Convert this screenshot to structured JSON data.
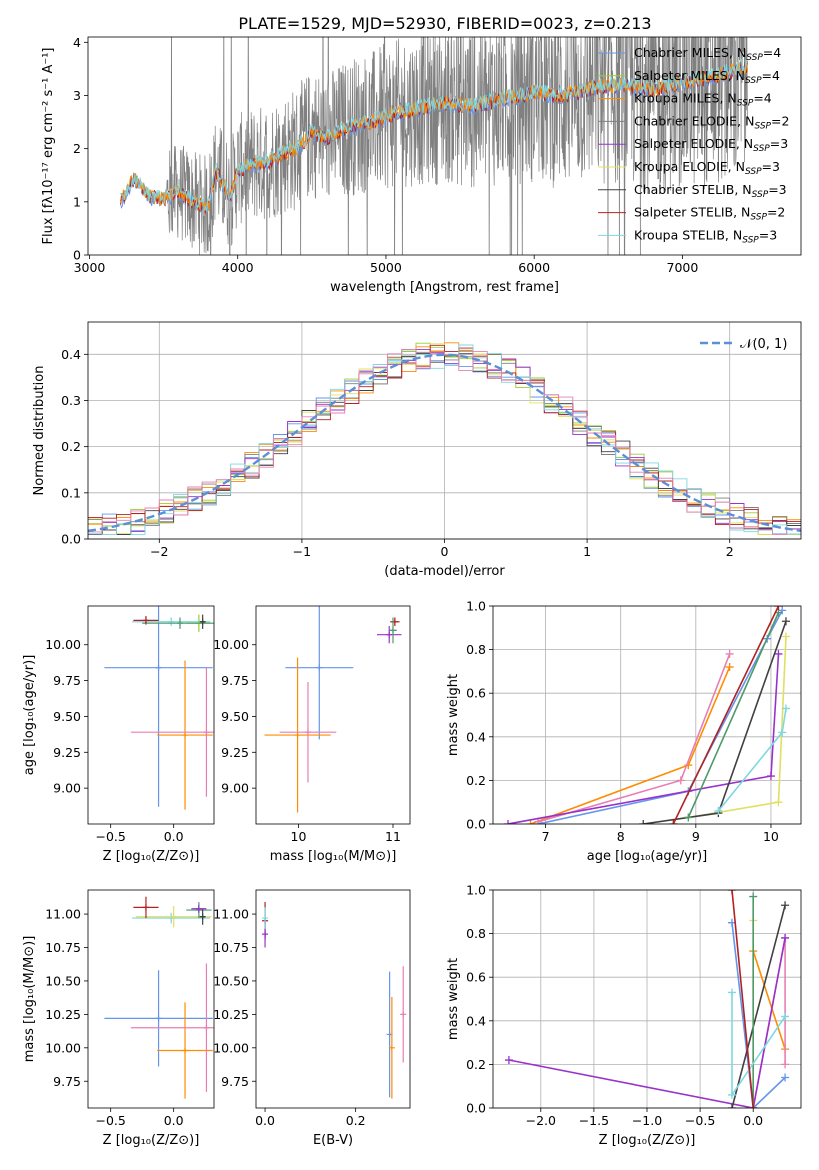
{
  "figure_title": "PLATE=1529, MJD=52930, FIBERID=0023, z=0.213",
  "colors": {
    "Chabrier MILES": "#6495ed",
    "Salpeter MILES": "#9acd32",
    "Kroupa MILES": "#ff8c00",
    "Chabrier ELODIE": "#808080",
    "Salpeter ELODIE": "#9932cc",
    "Kroupa ELODIE": "#e0e060",
    "Chabrier STELIB": "#404040",
    "Salpeter STELIB": "#b22222",
    "Kroupa STELIB": "#7fd7e0",
    "pink": "#e77fb4",
    "green": "#4e9a6a",
    "gaussian": "#5b8fd6"
  },
  "chart_data": [
    {
      "id": "spectrum",
      "type": "line",
      "title": "",
      "xlabel": "wavelength [Angstrom, rest frame]",
      "ylabel": "Flux [fλ10⁻¹⁷ erg cm⁻² s⁻¹ A⁻¹]",
      "xlim": [
        2990,
        7800
      ],
      "ylim": [
        0,
        4.1
      ],
      "xticks": [
        3000,
        4000,
        5000,
        6000,
        7000
      ],
      "yticks": [
        0,
        1,
        2,
        3,
        4
      ],
      "grid": false,
      "legend_position": "top-right",
      "legend": [
        {
          "label": "Chabrier MILES, N",
          "sub": "SSP",
          "suffix": "=4",
          "color_key": "Chabrier MILES"
        },
        {
          "label": "Salpeter MILES, N",
          "sub": "SSP",
          "suffix": "=4",
          "color_key": "Salpeter MILES"
        },
        {
          "label": "Kroupa MILES, N",
          "sub": "SSP",
          "suffix": "=4",
          "color_key": "Kroupa MILES"
        },
        {
          "label": "Chabrier ELODIE, N",
          "sub": "SSP",
          "suffix": "=2",
          "color_key": "Chabrier ELODIE"
        },
        {
          "label": "Salpeter ELODIE, N",
          "sub": "SSP",
          "suffix": "=3",
          "color_key": "Salpeter ELODIE"
        },
        {
          "label": "Kroupa ELODIE, N",
          "sub": "SSP",
          "suffix": "=3",
          "color_key": "Kroupa ELODIE"
        },
        {
          "label": "Chabrier STELIB, N",
          "sub": "SSP",
          "suffix": "=3",
          "color_key": "Chabrier STELIB"
        },
        {
          "label": "Salpeter STELIB, N",
          "sub": "SSP",
          "suffix": "=2",
          "color_key": "Salpeter STELIB"
        },
        {
          "label": "Kroupa STELIB, N",
          "sub": "SSP",
          "suffix": "=3",
          "color_key": "Kroupa STELIB"
        }
      ],
      "continuum_x": [
        3210,
        3300,
        3400,
        3500,
        3600,
        3700,
        3800,
        3850,
        3950,
        4000,
        4100,
        4200,
        4300,
        4400,
        4500,
        4600,
        4700,
        4800,
        4900,
        5000,
        5200,
        5400,
        5600,
        5800,
        6000,
        6200,
        6400,
        6600,
        6800,
        7000,
        7200,
        7450
      ],
      "continuum_y": [
        1.0,
        1.45,
        1.1,
        1.05,
        1.2,
        1.0,
        0.9,
        1.6,
        1.1,
        1.6,
        1.7,
        1.75,
        1.9,
        2.0,
        2.3,
        2.2,
        2.35,
        2.45,
        2.5,
        2.6,
        2.75,
        2.85,
        2.8,
        2.95,
        3.05,
        3.0,
        3.15,
        3.2,
        3.1,
        3.25,
        3.35,
        3.55
      ],
      "noisy_start_x": 3520,
      "noisy_end_x": 7440
    },
    {
      "id": "residuals",
      "type": "histogram",
      "title": "",
      "xlabel": "(data-model)/error",
      "ylabel": "Normed distribution",
      "xlim": [
        -2.5,
        2.5
      ],
      "ylim": [
        0,
        0.47
      ],
      "xticks": [
        -2,
        -1,
        0,
        1,
        2
      ],
      "yticks": [
        0.0,
        0.1,
        0.2,
        0.3,
        0.4
      ],
      "grid": true,
      "legend_position": "top-right",
      "legend": [
        {
          "label": "𝒩(0, 1)",
          "style": "dashed",
          "color_key": "gaussian"
        }
      ],
      "bin_width": 0.1,
      "series_color_keys": [
        "Chabrier MILES",
        "Salpeter MILES",
        "Kroupa MILES",
        "Chabrier ELODIE",
        "Salpeter ELODIE",
        "Kroupa ELODIE",
        "Chabrier STELIB",
        "Salpeter STELIB",
        "Kroupa STELIB",
        "pink"
      ]
    },
    {
      "id": "age-vs-Z",
      "type": "errorbar",
      "xlabel": "Z [log₁₀(Z/Z⊙)]",
      "ylabel": "age  [log₁₀(age/yr)]",
      "xlim": [
        -0.68,
        0.32
      ],
      "ylim": [
        8.75,
        10.27
      ],
      "xticks": [
        -0.5,
        0.0
      ],
      "xticklabels": [
        "−0.5",
        "0.0"
      ],
      "yticks": [
        9.0,
        9.25,
        9.5,
        9.75,
        10.0
      ],
      "yticklabels": [
        "9.00",
        "9.25",
        "9.50",
        "9.75",
        "10.00"
      ],
      "grid": false,
      "points": [
        {
          "x": -0.12,
          "xerr": 0.43,
          "y": 9.84,
          "yerr": 0.97,
          "color_key": "Chabrier MILES"
        },
        {
          "x": 0.09,
          "xerr": 0.22,
          "y": 9.37,
          "yerr": 0.52,
          "color_key": "Kroupa MILES"
        },
        {
          "x": 0.26,
          "xerr": 0.6,
          "y": 9.39,
          "yerr": 0.45,
          "color_key": "pink"
        },
        {
          "x": 0.2,
          "xerr": 0.1,
          "y": 10.15,
          "yerr": 0.06,
          "color_key": "Salpeter MILES"
        },
        {
          "x": -0.02,
          "xerr": 0.31,
          "y": 10.16,
          "yerr": 0.03,
          "color_key": "Kroupa STELIB"
        },
        {
          "x": 0.05,
          "xerr": 0.3,
          "y": 10.15,
          "yerr": 0.04,
          "color_key": "green"
        },
        {
          "x": -0.22,
          "xerr": 0.1,
          "y": 10.17,
          "yerr": 0.03,
          "color_key": "Salpeter STELIB"
        },
        {
          "x": 0.23,
          "xerr": 0.02,
          "y": 10.16,
          "yerr": 0.05,
          "color_key": "Chabrier STELIB"
        }
      ]
    },
    {
      "id": "age-vs-mass",
      "type": "errorbar",
      "xlabel": "mass [log₁₀(M/M⊙)]",
      "ylabel": "",
      "xlim": [
        9.55,
        11.18
      ],
      "ylim": [
        8.75,
        10.27
      ],
      "xticks": [
        10,
        11
      ],
      "xticklabels": [
        "10",
        "11"
      ],
      "yticks": [
        9.0,
        9.25,
        9.5,
        9.75,
        10.0
      ],
      "yticklabels": [
        "9.00",
        "9.25",
        "9.50",
        "9.75",
        "10.00"
      ],
      "grid": false,
      "points": [
        {
          "x": 10.22,
          "xerr": 0.36,
          "y": 9.84,
          "yerr": 0.5,
          "color_key": "Chabrier MILES"
        },
        {
          "x": 9.99,
          "xerr": 0.35,
          "y": 9.37,
          "yerr": 0.54,
          "color_key": "Kroupa MILES"
        },
        {
          "x": 10.1,
          "xerr": 0.3,
          "y": 9.39,
          "yerr": 0.35,
          "color_key": "pink"
        },
        {
          "x": 10.96,
          "xerr": 0.13,
          "y": 10.07,
          "yerr": 0.06,
          "color_key": "Salpeter ELODIE"
        },
        {
          "x": 11.02,
          "xerr": 0.05,
          "y": 10.16,
          "yerr": 0.03,
          "color_key": "Salpeter STELIB"
        },
        {
          "x": 11.0,
          "xerr": 0.04,
          "y": 10.1,
          "yerr": 0.09,
          "color_key": "green"
        }
      ]
    },
    {
      "id": "mass-weight-vs-age",
      "type": "line",
      "xlabel": "age  [log₁₀(age/yr)]",
      "ylabel": "mass weight",
      "xlim": [
        6.3,
        10.4
      ],
      "ylim": [
        0,
        1.0
      ],
      "xticks": [
        7,
        8,
        9,
        10
      ],
      "xticklabels": [
        "7",
        "8",
        "9",
        "10"
      ],
      "yticks": [
        0.0,
        0.2,
        0.4,
        0.6,
        0.8,
        1.0
      ],
      "yticklabels": [
        "0.0",
        "0.2",
        "0.4",
        "0.6",
        "0.8",
        "1.0"
      ],
      "grid": true,
      "series": [
        {
          "color_key": "Chabrier MILES",
          "x": [
            6.9,
            8.9,
            9.95,
            10.15
          ],
          "y": [
            0.0,
            0.15,
            0.85,
            0.98
          ]
        },
        {
          "color_key": "Kroupa MILES",
          "x": [
            6.8,
            8.9,
            9.45
          ],
          "y": [
            0.0,
            0.27,
            0.72
          ]
        },
        {
          "color_key": "pink",
          "x": [
            6.9,
            8.8,
            9.45
          ],
          "y": [
            0.01,
            0.2,
            0.78
          ]
        },
        {
          "color_key": "Salpeter ELODIE",
          "x": [
            6.5,
            10.0,
            10.1
          ],
          "y": [
            0.0,
            0.22,
            0.78
          ]
        },
        {
          "color_key": "Kroupa ELODIE",
          "x": [
            8.9,
            10.1,
            10.2
          ],
          "y": [
            0.03,
            0.1,
            0.86
          ]
        },
        {
          "color_key": "Chabrier STELIB",
          "x": [
            8.3,
            9.3,
            10.2
          ],
          "y": [
            0.0,
            0.05,
            0.93
          ]
        },
        {
          "color_key": "green",
          "x": [
            8.9,
            10.1
          ],
          "y": [
            0.03,
            0.97
          ]
        },
        {
          "color_key": "Kroupa STELIB",
          "x": [
            9.3,
            10.15,
            10.2
          ],
          "y": [
            0.06,
            0.42,
            0.53
          ]
        },
        {
          "color_key": "Salpeter STELIB",
          "x": [
            8.7,
            10.1
          ],
          "y": [
            0.0,
            1.0
          ]
        }
      ]
    },
    {
      "id": "mass-vs-Z",
      "type": "errorbar",
      "xlabel": "Z [log₁₀(Z/Z⊙)]",
      "ylabel": "mass [log₁₀(M/M⊙)]",
      "xlim": [
        -0.68,
        0.32
      ],
      "ylim": [
        9.55,
        11.18
      ],
      "xticks": [
        -0.5,
        0.0
      ],
      "xticklabels": [
        "−0.5",
        "0.0"
      ],
      "yticks": [
        9.75,
        10.0,
        10.25,
        10.5,
        10.75,
        11.0
      ],
      "yticklabels": [
        "9.75",
        "10.00",
        "10.25",
        "10.50",
        "10.75",
        "11.00"
      ],
      "grid": false,
      "points": [
        {
          "x": -0.12,
          "xerr": 0.43,
          "y": 10.22,
          "yerr": 0.36,
          "color_key": "Chabrier MILES"
        },
        {
          "x": 0.09,
          "xerr": 0.22,
          "y": 9.98,
          "yerr": 0.36,
          "color_key": "Kroupa MILES"
        },
        {
          "x": 0.26,
          "xerr": 0.6,
          "y": 10.15,
          "yerr": 0.48,
          "color_key": "pink"
        },
        {
          "x": -0.02,
          "xerr": 0.31,
          "y": 10.97,
          "yerr": 0.04,
          "color_key": "Kroupa STELIB"
        },
        {
          "x": 0.0,
          "xerr": 0.3,
          "y": 10.98,
          "yerr": 0.08,
          "color_key": "Kroupa ELODIE"
        },
        {
          "x": -0.22,
          "xerr": 0.1,
          "y": 11.05,
          "yerr": 0.08,
          "color_key": "Salpeter STELIB"
        },
        {
          "x": 0.2,
          "xerr": 0.1,
          "y": 11.03,
          "yerr": 0.06,
          "color_key": "green"
        },
        {
          "x": 0.23,
          "xerr": 0.02,
          "y": 10.98,
          "yerr": 0.06,
          "color_key": "Chabrier STELIB"
        },
        {
          "x": 0.2,
          "xerr": 0.06,
          "y": 11.04,
          "yerr": 0.03,
          "color_key": "Salpeter ELODIE"
        }
      ]
    },
    {
      "id": "mass-vs-ebv",
      "type": "errorbar",
      "xlabel": "E(B-V)",
      "ylabel": "",
      "xlim": [
        -0.02,
        0.32
      ],
      "ylim": [
        9.55,
        11.18
      ],
      "xticks": [
        0.0,
        0.2
      ],
      "xticklabels": [
        "0.0",
        "0.2"
      ],
      "yticks": [
        9.75,
        10.0,
        10.25,
        10.5,
        10.75,
        11.0
      ],
      "yticklabels": [
        "9.75",
        "10.00",
        "10.25",
        "10.50",
        "10.75",
        "11.00"
      ],
      "grid": false,
      "points": [
        {
          "x": 0.275,
          "xerr": 0,
          "y": 10.1,
          "yerr": 0.47,
          "color_key": "Chabrier MILES"
        },
        {
          "x": 0.28,
          "xerr": 0,
          "y": 10.0,
          "yerr": 0.38,
          "color_key": "Kroupa MILES"
        },
        {
          "x": 0.305,
          "xerr": 0,
          "y": 10.25,
          "yerr": 0.36,
          "color_key": "pink"
        },
        {
          "x": 0.0,
          "xerr": 0,
          "y": 10.95,
          "yerr": 0.14,
          "color_key": "Salpeter STELIB"
        },
        {
          "x": 0.0,
          "xerr": 0,
          "y": 10.85,
          "yerr": 0.1,
          "color_key": "Salpeter ELODIE"
        },
        {
          "x": 0.0,
          "xerr": 0,
          "y": 10.97,
          "yerr": 0.08,
          "color_key": "Kroupa STELIB"
        }
      ]
    },
    {
      "id": "mass-weight-vs-Z",
      "type": "line",
      "xlabel": "Z [log₁₀(Z/Z⊙)]",
      "ylabel": "mass weight",
      "xlim": [
        -2.45,
        0.45
      ],
      "ylim": [
        0,
        1.0
      ],
      "xticks": [
        -2.0,
        -1.5,
        -1.0,
        -0.5,
        0.0
      ],
      "xticklabels": [
        "−2.0",
        "−1.5",
        "−1.0",
        "−0.5",
        "0.0"
      ],
      "yticks": [
        0.0,
        0.2,
        0.4,
        0.6,
        0.8,
        1.0
      ],
      "yticklabels": [
        "0.0",
        "0.2",
        "0.4",
        "0.6",
        "0.8",
        "1.0"
      ],
      "grid": true,
      "series": [
        {
          "color_key": "Chabrier MILES",
          "x": [
            -0.2,
            0.0,
            0.3
          ],
          "y": [
            0.85,
            0.0,
            0.14
          ]
        },
        {
          "color_key": "Kroupa MILES",
          "x": [
            0.0,
            0.3
          ],
          "y": [
            0.72,
            0.27
          ]
        },
        {
          "color_key": "pink",
          "x": [
            0.0,
            0.3,
            0.3
          ],
          "y": [
            0.0,
            0.78,
            0.2
          ]
        },
        {
          "color_key": "Salpeter ELODIE",
          "x": [
            -2.3,
            0.0,
            0.3
          ],
          "y": [
            0.22,
            0.0,
            0.78
          ]
        },
        {
          "color_key": "Kroupa ELODIE",
          "x": [
            0.0,
            0.0
          ],
          "y": [
            0.86,
            0.0
          ]
        },
        {
          "color_key": "Chabrier STELIB",
          "x": [
            -0.2,
            0.3
          ],
          "y": [
            0.0,
            0.93
          ]
        },
        {
          "color_key": "green",
          "x": [
            0.0,
            0.0
          ],
          "y": [
            0.97,
            0.0
          ]
        },
        {
          "color_key": "Kroupa STELIB",
          "x": [
            -0.2,
            -0.2,
            0.3
          ],
          "y": [
            0.53,
            0.06,
            0.42
          ]
        },
        {
          "color_key": "Salpeter STELIB",
          "x": [
            -0.2,
            0.0
          ],
          "y": [
            1.0,
            0.0
          ]
        }
      ]
    }
  ]
}
